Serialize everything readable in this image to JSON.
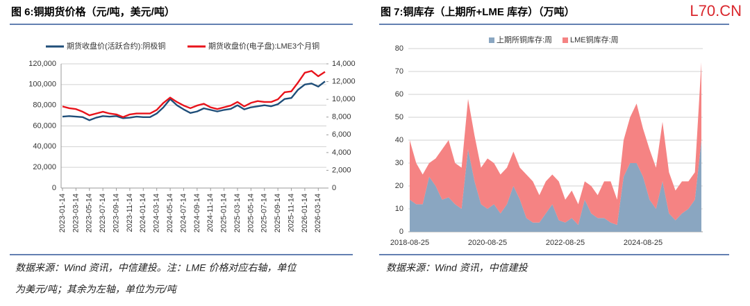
{
  "watermark": "L70.CN",
  "chart_data": [
    {
      "type": "line",
      "title": "图 6:铜期货价格（元/吨，美元/吨）",
      "note": [
        "数据来源：Wind 资讯，中信建投。注：LME 价格对应右轴，单位",
        "为美元/吨；其余为左轴，单位为元/吨"
      ],
      "categories": [
        "2023-01-14",
        null,
        "2023-03-14",
        null,
        "2023-05-14",
        null,
        "2023-07-14",
        null,
        "2023-09-14",
        null,
        "2023-11-14",
        null,
        "2024-01-14",
        null,
        "2024-03-14",
        null,
        "2024-05-14",
        null,
        "2024-07-14",
        null,
        "2024-09-14",
        null,
        "2024-11-14",
        null,
        "2025-01-14",
        null,
        "2025-03-14",
        null,
        "2025-05-14",
        null,
        "2025-07-14",
        null,
        "2025-09-14",
        null,
        "2025-11-14",
        null,
        "2026-01-14",
        null,
        "2026-03-14",
        null
      ],
      "series": [
        {
          "name": "期货收盘价(活跃合约):阴极铜",
          "color": "#1f4e79",
          "values": [
            69000,
            69500,
            69000,
            68500,
            65500,
            68000,
            69500,
            69000,
            69500,
            67500,
            68000,
            69000,
            68500,
            68500,
            72000,
            78000,
            86000,
            80000,
            76000,
            72500,
            74000,
            77000,
            75500,
            74000,
            75500,
            76500,
            80000,
            76000,
            78000,
            79000,
            80000,
            79000,
            81000,
            86000,
            87000,
            95000,
            100000,
            101000,
            98000,
            103000
          ]
        },
        {
          "name": "期货收盘价(电子盘):LME3个月铜",
          "color": "#e8131b",
          "axis": "y2",
          "values": [
            9200,
            9000,
            8900,
            8600,
            8200,
            8400,
            8600,
            8400,
            8300,
            8000,
            8300,
            8400,
            8400,
            8400,
            8800,
            9600,
            10200,
            9700,
            9300,
            9000,
            9300,
            9500,
            9100,
            8900,
            9100,
            9300,
            9700,
            9200,
            9600,
            9800,
            9700,
            9700,
            10000,
            10800,
            10900,
            11900,
            13000,
            13200,
            12600,
            13100
          ]
        }
      ],
      "ylim": [
        0,
        120000
      ],
      "yticks": [
        0,
        {
          "value": 20000,
          "label": "20,000"
        },
        {
          "value": 40000,
          "label": "40,000"
        },
        {
          "value": 60000,
          "label": "60,000"
        },
        {
          "value": 80000,
          "label": "80,000"
        },
        {
          "value": 100000,
          "label": "100,000"
        },
        {
          "value": 120000,
          "label": "120,000"
        }
      ],
      "y2lim": [
        0,
        14000
      ],
      "y2ticks": [
        0,
        {
          "value": 2000,
          "label": "2,000"
        },
        {
          "value": 4000,
          "label": "4,000"
        },
        {
          "value": 6000,
          "label": "6,000"
        },
        {
          "value": 8000,
          "label": "8,000"
        },
        {
          "value": 10000,
          "label": "10,000"
        },
        {
          "value": 12000,
          "label": "12,000"
        },
        {
          "value": 14000,
          "label": "14,000"
        }
      ],
      "grid": true
    },
    {
      "type": "stacked-area",
      "title": "图 7:铜库存（上期所+LME 库存）（万吨）",
      "note": [
        "数据来源：Wind 资讯，中信建投"
      ],
      "categories": [
        "2018-08-25",
        null,
        null,
        null,
        null,
        null,
        null,
        null,
        null,
        null,
        null,
        null,
        "2020-08-25",
        null,
        null,
        null,
        null,
        null,
        null,
        null,
        null,
        null,
        null,
        null,
        "2022-08-25",
        null,
        null,
        null,
        null,
        null,
        null,
        null,
        null,
        null,
        null,
        null,
        "2024-08-25",
        null,
        null,
        null,
        null,
        null,
        null,
        null,
        null,
        null
      ],
      "series": [
        {
          "name": "上期所铜库存:周",
          "color": "#8aa6c1",
          "values": [
            14,
            12,
            12,
            24,
            20,
            14,
            15,
            12,
            10,
            36,
            22,
            12,
            10,
            12,
            8,
            12,
            20,
            14,
            6,
            4,
            4,
            8,
            12,
            5,
            4,
            6,
            3,
            14,
            8,
            6,
            6,
            4,
            3,
            24,
            30,
            30,
            24,
            14,
            10,
            22,
            8,
            5,
            8,
            10,
            14,
            40
          ]
        },
        {
          "name": "LME铜库存:周",
          "color": "#f58383",
          "values": [
            26,
            18,
            13,
            6,
            12,
            22,
            25,
            18,
            18,
            22,
            20,
            16,
            22,
            18,
            17,
            16,
            15,
            14,
            19,
            18,
            12,
            14,
            13,
            17,
            10,
            12,
            9,
            8,
            12,
            10,
            16,
            18,
            11,
            16,
            20,
            26,
            21,
            22,
            18,
            26,
            18,
            13,
            14,
            12,
            12,
            34
          ]
        }
      ],
      "ylim": [
        0,
        80
      ],
      "yticks": [
        0,
        10,
        20,
        30,
        40,
        50,
        60,
        70,
        80
      ],
      "grid": true
    }
  ]
}
